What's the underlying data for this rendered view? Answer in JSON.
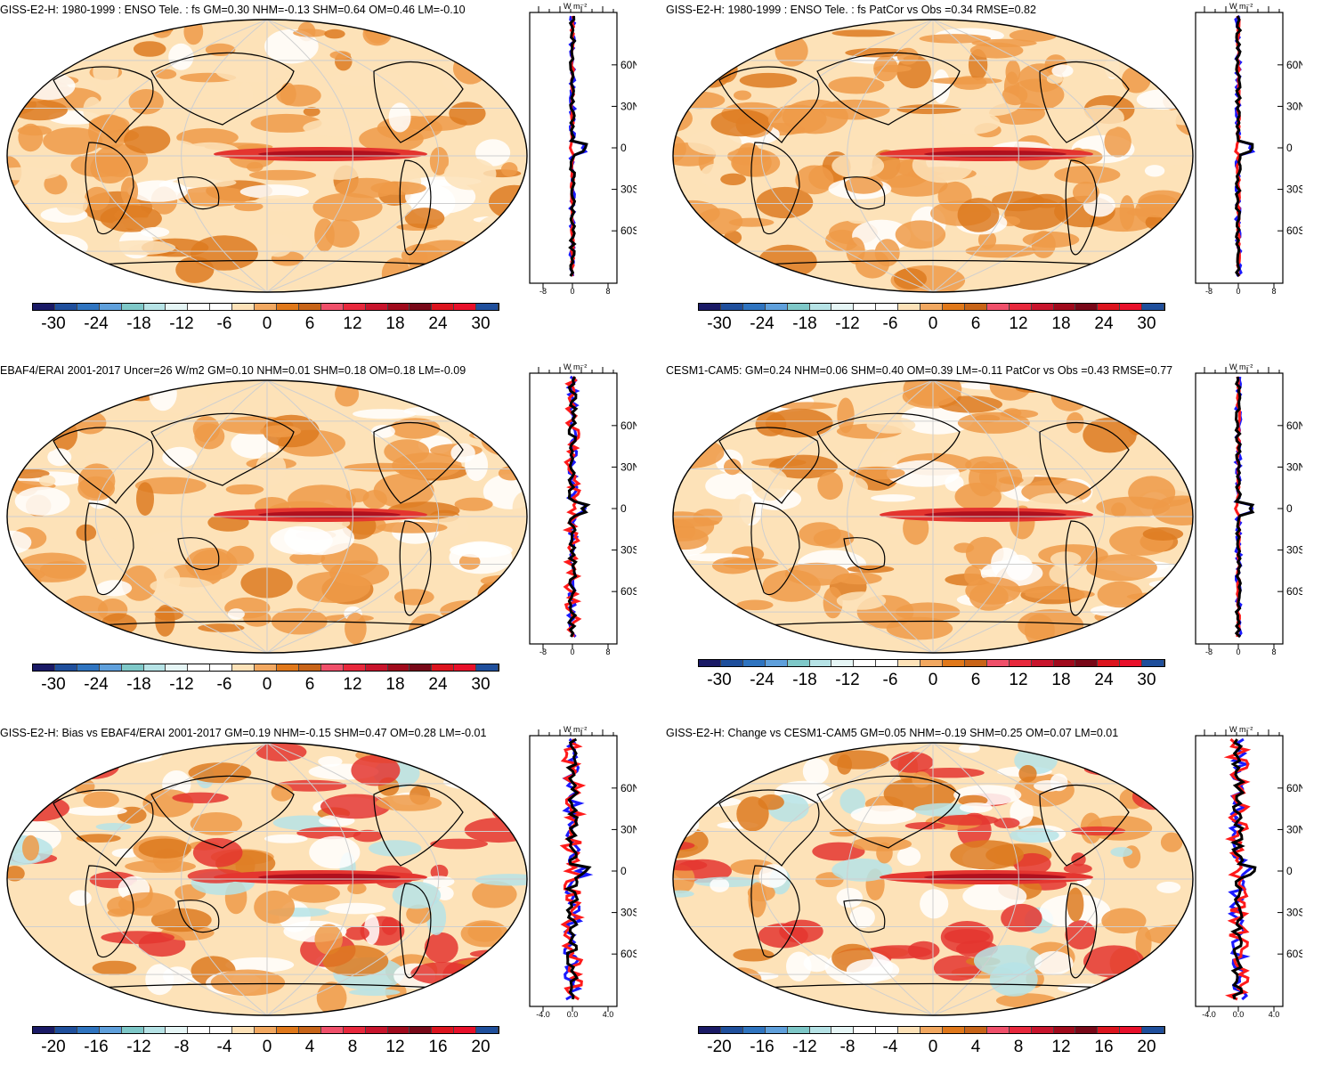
{
  "panels": [
    {
      "title": "GISS-E2-H: 1980-1999 : ENSO Tele. : fs GM=0.30 NHM=-0.13 SHM=0.64 OM=0.46 LM=-0.10",
      "colorbar_labels": [
        "-30",
        "-24",
        "-18",
        "-12",
        "-6",
        "0",
        "6",
        "12",
        "18",
        "24",
        "30"
      ],
      "profile_xticks": [
        "-8",
        "0",
        "8"
      ],
      "profile_ylabels": [
        "60N",
        "30N",
        "0",
        "30S",
        "60S"
      ],
      "profile_unit": "W m⁻²",
      "lines": [
        "blue",
        "red",
        "black"
      ]
    },
    {
      "title": "GISS-E2-H: 1980-1999 : ENSO Tele. : fs PatCor vs Obs =0.34 RMSE=0.82",
      "colorbar_labels": [
        "-30",
        "-24",
        "-18",
        "-12",
        "-6",
        "0",
        "6",
        "12",
        "18",
        "24",
        "30"
      ],
      "profile_xticks": [
        "-8",
        "0",
        "8"
      ],
      "profile_ylabels": [
        "60N",
        "30N",
        "0",
        "30S",
        "60S"
      ],
      "profile_unit": "W m⁻²",
      "lines": [
        "blue",
        "red",
        "black"
      ]
    },
    {
      "title": "EBAF4/ERAI 2001-2017 Uncer=26 W/m2 GM=0.10 NHM=0.01 SHM=0.18 OM=0.18 LM=-0.09",
      "colorbar_labels": [
        "-30",
        "-24",
        "-18",
        "-12",
        "-6",
        "0",
        "6",
        "12",
        "18",
        "24",
        "30"
      ],
      "profile_xticks": [
        "-8",
        "0",
        "8"
      ],
      "profile_ylabels": [
        "60N",
        "30N",
        "0",
        "30S",
        "60S"
      ],
      "profile_unit": "W m⁻²",
      "lines": [
        "blue",
        "red",
        "black"
      ]
    },
    {
      "title": "CESM1-CAM5: GM=0.24 NHM=0.06 SHM=0.40 OM=0.39 LM=-0.11 PatCor vs Obs =0.43 RMSE=0.77",
      "colorbar_labels": [
        "-30",
        "-24",
        "-18",
        "-12",
        "-6",
        "0",
        "6",
        "12",
        "18",
        "24",
        "30"
      ],
      "profile_xticks": [
        "-8",
        "0",
        "8"
      ],
      "profile_ylabels": [
        "60N",
        "30N",
        "0",
        "30S",
        "60S"
      ],
      "profile_unit": "W m⁻²",
      "lines": [
        "blue",
        "red",
        "black"
      ]
    },
    {
      "title": "GISS-E2-H: Bias vs EBAF4/ERAI 2001-2017 GM=0.19 NHM=-0.15 SHM=0.47 OM=0.28 LM=-0.01",
      "colorbar_labels": [
        "-20",
        "-16",
        "-12",
        "-8",
        "-4",
        "0",
        "4",
        "8",
        "12",
        "16",
        "20"
      ],
      "profile_xticks": [
        "-4.0",
        "0.0",
        "4.0"
      ],
      "profile_ylabels": [
        "60N",
        "30N",
        "0",
        "30S",
        "60S"
      ],
      "profile_unit": "W m⁻²",
      "lines": [
        "blue",
        "red",
        "black"
      ]
    },
    {
      "title": "GISS-E2-H: Change vs CESM1-CAM5 GM=0.05 NHM=-0.19 SHM=0.25 OM=0.07 LM=0.01",
      "colorbar_labels": [
        "-20",
        "-16",
        "-12",
        "-8",
        "-4",
        "0",
        "4",
        "8",
        "12",
        "16",
        "20"
      ],
      "profile_xticks": [
        "-4.0",
        "0.0",
        "4.0"
      ],
      "profile_ylabels": [
        "60N",
        "30N",
        "0",
        "30S",
        "60S"
      ],
      "profile_unit": "W m⁻²",
      "lines": [
        "blue",
        "red",
        "black"
      ]
    }
  ],
  "colorbar_colors": [
    "#1a1a66",
    "#1f4f9c",
    "#2f74c0",
    "#5fa0dc",
    "#7ec8c8",
    "#b6e3e6",
    "#e6f6f6",
    "#ffffff",
    "#ffffff",
    "#fde2b8",
    "#f2a860",
    "#e0781a",
    "#c86418",
    "#f0506a",
    "#e8283c",
    "#c8142c",
    "#a00a1c",
    "#780818",
    "#dc141e",
    "#e8102a",
    "#1f4f9c"
  ],
  "map_colors": {
    "light": "#fde2b8",
    "orange": "#ee9a48",
    "dark_orange": "#dd7a20",
    "red": "#e4352f",
    "dark_red": "#b0101e",
    "blue": "#2f74c0",
    "light_blue": "#b6e3e6",
    "land_outline": "#000000",
    "grid": "#cfcfcf"
  }
}
